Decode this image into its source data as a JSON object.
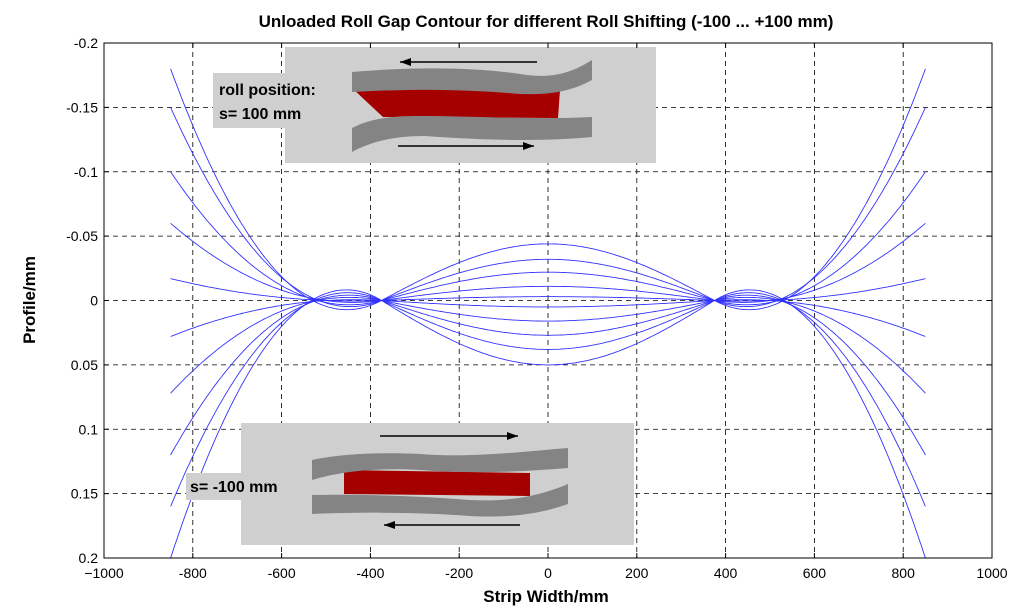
{
  "chart_data": {
    "type": "line",
    "title": "Unloaded Roll Gap Contour for different Roll Shifting (-100 ... +100 mm)",
    "xlabel": "Strip Width/mm",
    "ylabel": "Profile/mm",
    "xlim": [
      -1000,
      1000
    ],
    "ylim": [
      -0.2,
      0.2
    ],
    "y_inverted": true,
    "grid": true,
    "x_ticks": [
      -1000,
      -800,
      -600,
      -400,
      -200,
      0,
      200,
      400,
      600,
      800,
      1000
    ],
    "x_tick_labels": [
      "−1000",
      "-800",
      "-600",
      "-400",
      "-200",
      "0",
      "200",
      "400",
      "600",
      "800",
      "1000"
    ],
    "y_ticks": [
      -0.2,
      -0.15,
      -0.1,
      -0.05,
      0,
      0.05,
      0.1,
      0.15,
      0.2
    ],
    "y_tick_labels": [
      "-0.2",
      "-0.15",
      "-0.1",
      "-0.05",
      "0",
      "0.05",
      "0.1",
      "0.15",
      "0.2"
    ],
    "line_color": "#3333ff",
    "x_range": [
      -850,
      850
    ],
    "node_x": [
      -375,
      375
    ],
    "series": [
      {
        "center_value": -0.044,
        "edge_value": -0.18
      },
      {
        "center_value": -0.032,
        "edge_value": -0.15
      },
      {
        "center_value": -0.022,
        "edge_value": -0.1
      },
      {
        "center_value": -0.011,
        "edge_value": -0.06
      },
      {
        "center_value": -0.003,
        "edge_value": -0.017
      },
      {
        "center_value": 0.005,
        "edge_value": 0.028
      },
      {
        "center_value": 0.016,
        "edge_value": 0.072
      },
      {
        "center_value": 0.027,
        "edge_value": 0.12
      },
      {
        "center_value": 0.038,
        "edge_value": 0.16
      },
      {
        "center_value": 0.05,
        "edge_value": 0.2
      }
    ],
    "annotations": [
      {
        "line1": "roll position:",
        "line2": "s= 100 mm"
      },
      {
        "line1": "s= -100 mm"
      }
    ]
  },
  "colors": {
    "inset_background": "#cfcfcf",
    "roll": "#848484",
    "gap": "#a40000",
    "arrow": "#000000"
  }
}
